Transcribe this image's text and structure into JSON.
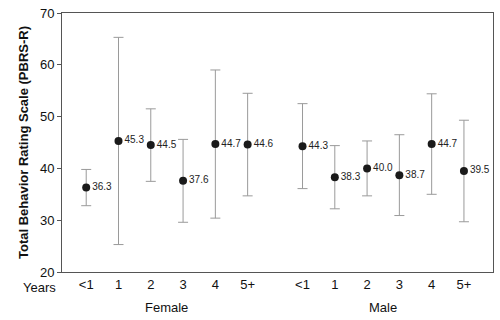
{
  "chart_data": {
    "type": "scatter",
    "y_label": "Total Behavior Rating Scale (PBRS-R)",
    "x_label": "Years",
    "categories": [
      "<1",
      "1",
      "2",
      "3",
      "4",
      "5+"
    ],
    "series": [
      {
        "name": "Female",
        "values": [
          36.3,
          45.3,
          44.5,
          37.6,
          44.7,
          44.6
        ],
        "value_labels": [
          "36.3",
          "45.3",
          "44.5",
          "37.6",
          "44.7",
          "44.6"
        ],
        "error": [
          3.5,
          20.0,
          7.0,
          8.0,
          14.3,
          9.9
        ]
      },
      {
        "name": "Male",
        "values": [
          44.3,
          38.3,
          40.0,
          38.7,
          44.7,
          39.5
        ],
        "value_labels": [
          "44.3",
          "38.3",
          "40.0",
          "38.7",
          "44.7",
          "39.5"
        ],
        "error": [
          8.2,
          6.1,
          5.3,
          7.8,
          9.7,
          9.8
        ]
      }
    ],
    "color": "#1a1a1a",
    "marker": "circle",
    "data_labels": true,
    "ylim": [
      20,
      70
    ],
    "yticks": [
      20,
      30,
      40,
      50,
      60,
      70
    ],
    "grid": false,
    "legend": false
  }
}
